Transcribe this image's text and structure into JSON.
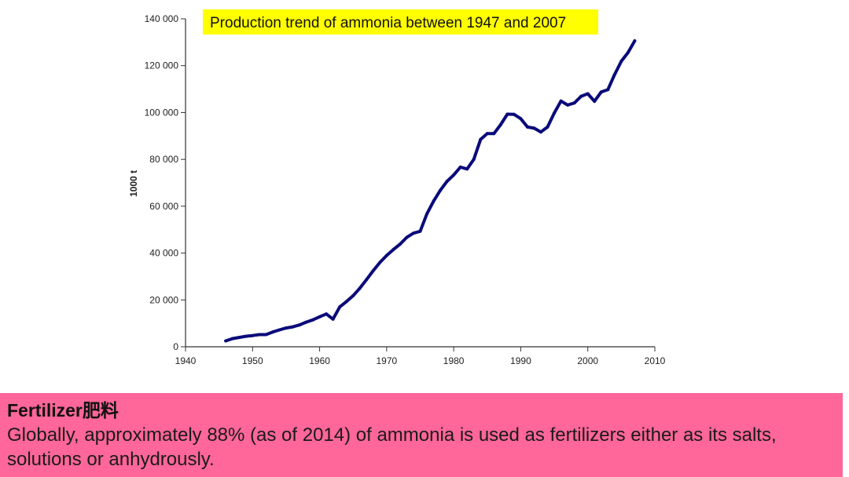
{
  "chart_data": {
    "type": "line",
    "title": "Production trend of ammonia between 1947 and 2007",
    "xlabel": "",
    "ylabel": "1000 t",
    "xlim": [
      1940,
      2010
    ],
    "ylim": [
      0,
      140000
    ],
    "x_ticks": [
      1940,
      1950,
      1960,
      1970,
      1980,
      1990,
      2000,
      2010
    ],
    "y_ticks": [
      0,
      20000,
      40000,
      60000,
      80000,
      100000,
      120000,
      140000
    ],
    "x_tick_labels": [
      "1940",
      "1950",
      "1960",
      "1970",
      "1980",
      "1990",
      "2000",
      "2010"
    ],
    "y_tick_labels": [
      "0",
      "20 000",
      "40 000",
      "60 000",
      "80 000",
      "100 000",
      "120 000",
      "140 000"
    ],
    "grid": false,
    "colors": {
      "line": "#0a0a7a",
      "title_highlight": "#ffff00",
      "axis": "#333333"
    },
    "series": [
      {
        "x": [
          1946,
          1947,
          1948,
          1949,
          1950,
          1951,
          1952,
          1953,
          1954,
          1955,
          1956,
          1957,
          1958,
          1959,
          1960,
          1961,
          1962,
          1963,
          1964,
          1965,
          1966,
          1967,
          1968,
          1969,
          1970,
          1971,
          1972,
          1973,
          1974,
          1975,
          1976,
          1977,
          1978,
          1979,
          1980,
          1981,
          1982,
          1983,
          1984,
          1985,
          1986,
          1987,
          1988,
          1989,
          1990,
          1991,
          1992,
          1993,
          1994,
          1995,
          1996,
          1997,
          1998,
          1999,
          2000,
          2001,
          2002,
          2003,
          2004,
          2005,
          2006,
          2007
        ],
        "y": [
          2500,
          3500,
          4000,
          4500,
          4800,
          5200,
          5200,
          6300,
          7200,
          8000,
          8500,
          9300,
          10500,
          11500,
          12800,
          14000,
          11800,
          17000,
          19300,
          21800,
          25000,
          28700,
          32500,
          36000,
          39000,
          41500,
          43800,
          46700,
          48500,
          49300,
          56700,
          62200,
          66800,
          70600,
          73300,
          76700,
          75900,
          80000,
          88500,
          91000,
          91000,
          94800,
          99300,
          99200,
          97400,
          93800,
          93300,
          91700,
          93800,
          99800,
          104900,
          103200,
          104100,
          106900,
          108000,
          104800,
          108800,
          109800,
          116200,
          121900,
          125600,
          130600
        ]
      }
    ]
  },
  "info": {
    "heading": "Fertilizer肥料",
    "body": "Globally, approximately 88% (as of 2014) of ammonia is used as fertilizers either as its salts, solutions or anhydrously."
  }
}
